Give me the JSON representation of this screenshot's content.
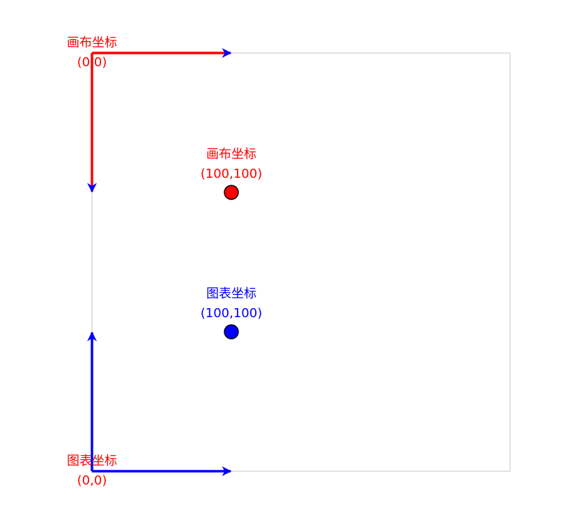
{
  "colors": {
    "canvas": "#ff0000",
    "chart": "#0000ff",
    "frame": "#d9d9d9",
    "point_outline": "#000000"
  },
  "labels": {
    "canvas_origin_title": "画布坐标",
    "canvas_origin_coord": "(0,0)",
    "canvas_point_title": "画布坐标",
    "canvas_point_coord": "(100,100)",
    "chart_point_title": "图表坐标",
    "chart_point_coord": "(100,100)",
    "chart_origin_title": "图表坐标",
    "chart_origin_coord": "(0,0)"
  }
}
